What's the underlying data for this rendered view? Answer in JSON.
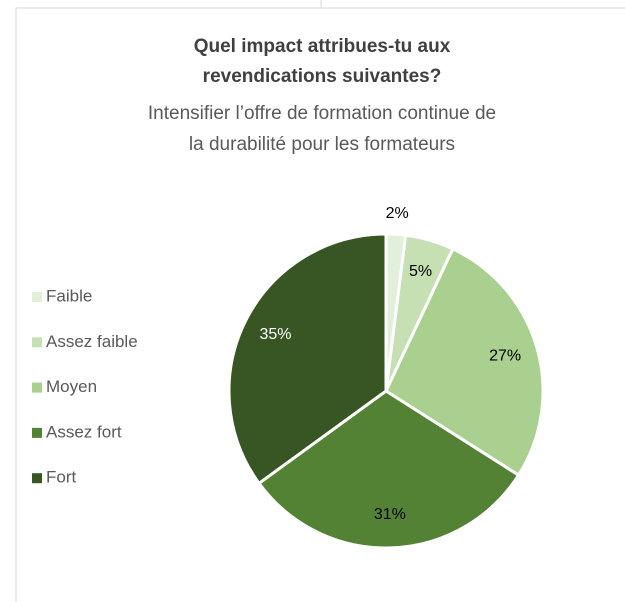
{
  "chart_data": {
    "type": "pie",
    "title": [
      "Quel impact attribues-tu aux",
      "revendications suivantes?"
    ],
    "subtitle": [
      "Intensifier l’offre de formation continue de",
      "la durabilité pour les formateurs"
    ],
    "categories": [
      "Faible",
      "Assez faible",
      "Moyen",
      "Assez fort",
      "Fort"
    ],
    "values": [
      2,
      5,
      27,
      31,
      35
    ],
    "value_labels": [
      "2%",
      "5%",
      "27%",
      "31%",
      "35%"
    ],
    "colors": [
      "#e2efda",
      "#c6e0b4",
      "#a9d08e",
      "#548235",
      "#375623"
    ],
    "legend": "left"
  }
}
